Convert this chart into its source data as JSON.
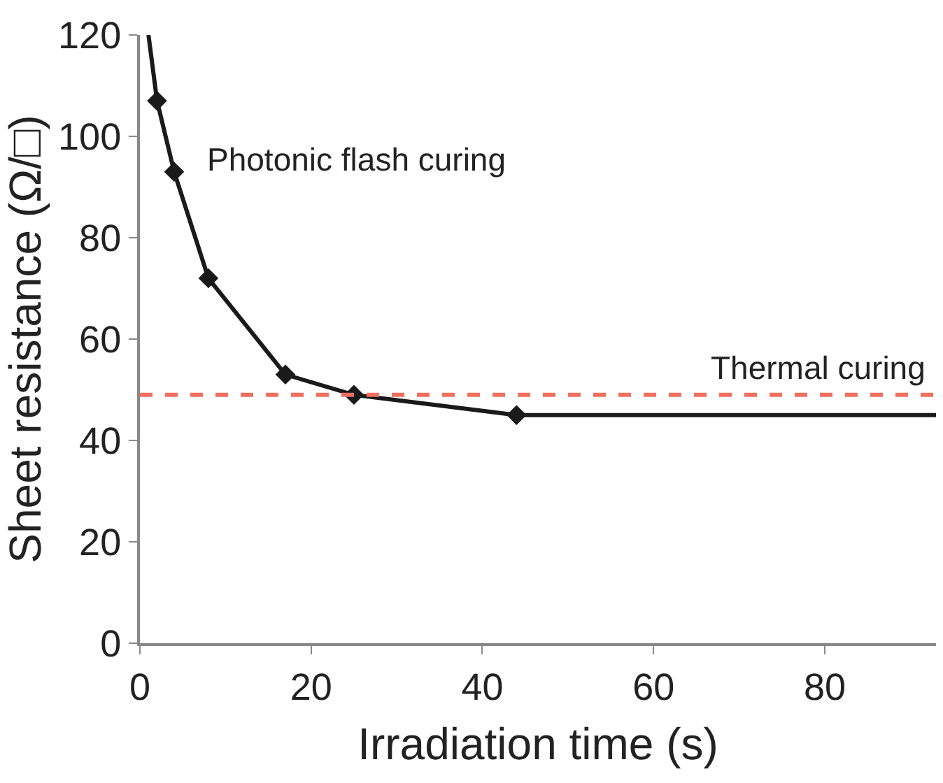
{
  "chart_data": {
    "type": "line",
    "xlabel": "Irradiation time (s)",
    "ylabel": "Sheet resistance (Ω/□)",
    "xlim": [
      0,
      93
    ],
    "xticks": [
      0,
      20,
      40,
      60,
      80
    ],
    "ylim": [
      0,
      120
    ],
    "yticks": [
      0,
      20,
      40,
      60,
      80,
      100,
      120
    ],
    "series": [
      {
        "color": "#1a1a1a",
        "marker": "diamond",
        "x": [
          2,
          4,
          8,
          17,
          25,
          44
        ],
        "values": [
          107,
          93,
          72,
          53,
          49,
          45
        ]
      },
      {
        "color": "#1a1a1a",
        "marker": "none",
        "x": [
          1,
          2,
          null,
          44,
          93
        ],
        "values": [
          120,
          107,
          null,
          45,
          45
        ]
      }
    ],
    "ref_lines": [
      {
        "axis": "y",
        "value": 49,
        "label": "Thermal curing",
        "color": "#f07060",
        "line_style": "dashed"
      }
    ],
    "annotations": [
      "Photonic flash curing"
    ]
  }
}
